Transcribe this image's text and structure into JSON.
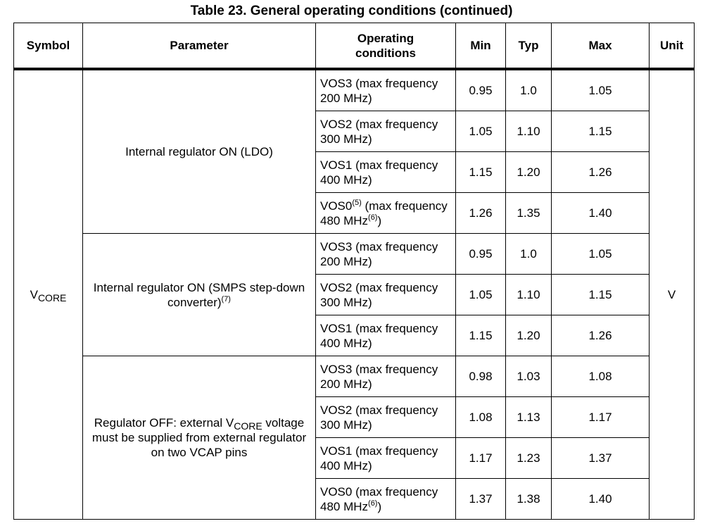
{
  "title": "Table 23. General operating conditions (continued)",
  "headers": {
    "symbol": "Symbol",
    "parameter": "Parameter",
    "conditions_line1": "Operating",
    "conditions_line2": "conditions",
    "min": "Min",
    "typ": "Typ",
    "max": "Max",
    "unit": "Unit"
  },
  "symbol": {
    "main": "V",
    "sub": "CORE"
  },
  "unit": "V",
  "groups": {
    "ldo": {
      "label": "Internal regulator ON (LDO)"
    },
    "smps": {
      "label": "Internal regulator ON (SMPS step-down converter)",
      "note": "(7)"
    },
    "off": {
      "label_before": "Regulator OFF: external V",
      "label_sub": "CORE",
      "label_after": " voltage must be supplied from external regulator on two VCAP pins"
    }
  },
  "rows": [
    {
      "cond": "VOS3 (max frequency 200 MHz)",
      "min": "0.95",
      "typ": "1.0",
      "max": "1.05"
    },
    {
      "cond": "VOS2 (max frequency 300 MHz)",
      "min": "1.05",
      "typ": "1.10",
      "max": "1.15"
    },
    {
      "cond": "VOS1 (max frequency 400 MHz)",
      "min": "1.15",
      "typ": "1.20",
      "max": "1.26"
    },
    {
      "cond_a": "VOS0",
      "note_a": "(5)",
      "cond_b": " (max frequency 480 MHz",
      "note_b": "(6)",
      "cond_c": ")",
      "min": "1.26",
      "typ": "1.35",
      "max": "1.40"
    },
    {
      "cond": "VOS3 (max frequency 200 MHz)",
      "min": "0.95",
      "typ": "1.0",
      "max": "1.05"
    },
    {
      "cond": "VOS2 (max frequency 300 MHz)",
      "min": "1.05",
      "typ": "1.10",
      "max": "1.15"
    },
    {
      "cond": "VOS1 (max frequency 400 MHz)",
      "min": "1.15",
      "typ": "1.20",
      "max": "1.26"
    },
    {
      "cond": "VOS3 (max frequency 200 MHz)",
      "min": "0.98",
      "typ": "1.03",
      "max": "1.08"
    },
    {
      "cond": "VOS2 (max frequency 300 MHz)",
      "min": "1.08",
      "typ": "1.13",
      "max": "1.17"
    },
    {
      "cond": "VOS1 (max frequency 400 MHz)",
      "min": "1.17",
      "typ": "1.23",
      "max": "1.37"
    },
    {
      "cond_a": "VOS0 (max frequency 480 MHz",
      "note_a": "(6)",
      "cond_c": ")",
      "min": "1.37",
      "typ": "1.38",
      "max": "1.40"
    }
  ]
}
